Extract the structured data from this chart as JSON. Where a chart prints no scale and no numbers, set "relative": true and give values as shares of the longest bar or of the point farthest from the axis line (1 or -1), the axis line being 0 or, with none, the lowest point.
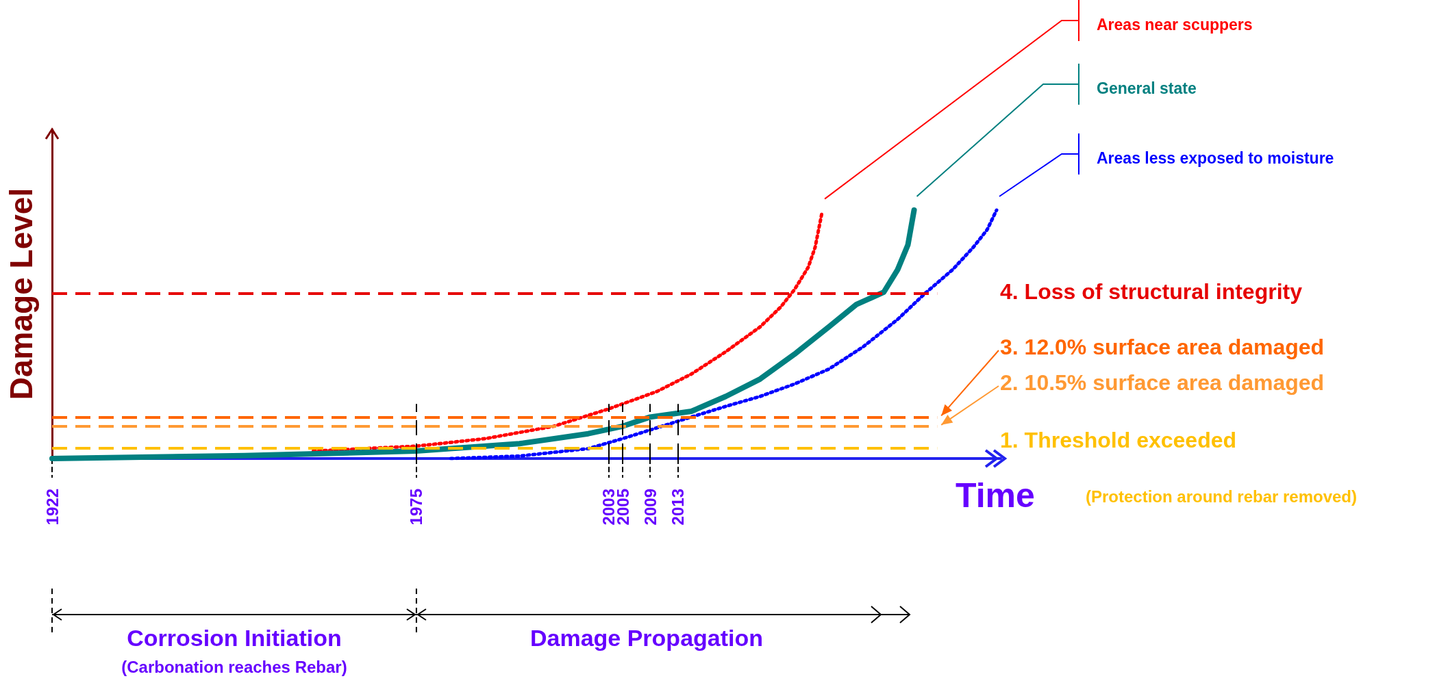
{
  "chart_data": {
    "type": "line",
    "relative": true,
    "xlabel": "Time",
    "ylabel": "Damage Level",
    "xlim": [
      1922,
      2060
    ],
    "xticks": [
      1922,
      1975,
      2003,
      2005,
      2009,
      2013
    ],
    "grid": false,
    "legend": false,
    "marker": "none",
    "tick_labels": "x",
    "series": [
      {
        "name": "Areas near scuppers",
        "color": "#ff0000",
        "line_style": "dotted",
        "x": [
          1960,
          1975,
          1985,
          1995,
          2003,
          2010,
          2015,
          2020,
          2025,
          2028,
          2030,
          2032,
          2033,
          2034
        ],
        "values": [
          0.03,
          0.05,
          0.08,
          0.13,
          0.2,
          0.27,
          0.34,
          0.43,
          0.53,
          0.61,
          0.68,
          0.77,
          0.85,
          0.99
        ]
      },
      {
        "name": "General state",
        "color": "#008080",
        "line_style": "solid",
        "x": [
          1922,
          1950,
          1975,
          1990,
          2000,
          2005,
          2009,
          2015,
          2020,
          2025,
          2030,
          2035,
          2039,
          2043,
          2045,
          2046.5,
          2047.4
        ],
        "values": [
          0,
          0.012,
          0.03,
          0.06,
          0.1,
          0.13,
          0.167,
          0.19,
          0.25,
          0.32,
          0.42,
          0.53,
          0.62,
          0.67,
          0.76,
          0.86,
          1
        ]
      },
      {
        "name": "Areas less exposed to moisture",
        "color": "#0000ff",
        "line_style": "dotted",
        "x": [
          1980,
          1990,
          2000,
          2005,
          2013,
          2020,
          2025,
          2030,
          2035,
          2040,
          2045,
          2049,
          2053,
          2056,
          2058,
          2059.4
        ],
        "values": [
          0,
          0.01,
          0.04,
          0.08,
          0.15,
          0.21,
          0.25,
          0.3,
          0.36,
          0.45,
          0.56,
          0.665,
          0.76,
          0.85,
          0.92,
          1
        ]
      }
    ],
    "ref_lines": [
      {
        "axis": "y",
        "value": 0.665,
        "label": "4. Loss of structural integrity",
        "color": "#e60000",
        "line_style": "dashed"
      },
      {
        "axis": "y",
        "value": 0.167,
        "label": "3. 12.0% surface area damaged",
        "color": "#ff6600",
        "line_style": "dashed"
      },
      {
        "axis": "y",
        "value": 0.13,
        "label": "2. 10.5% surface area damaged",
        "color": "#ff9933",
        "line_style": "dashed"
      },
      {
        "axis": "y",
        "value": 0.041,
        "label": "1.  Threshold exceeded",
        "color": "#ffc000",
        "line_style": "dashed"
      },
      {
        "axis": "x",
        "value": 1975,
        "color": "#000000",
        "line_style": "dashed"
      },
      {
        "axis": "x",
        "value": 2003,
        "color": "#000000",
        "line_style": "dashed"
      },
      {
        "axis": "x",
        "value": 2005,
        "color": "#000000",
        "line_style": "dashed"
      },
      {
        "axis": "x",
        "value": 2009,
        "color": "#000000",
        "line_style": "dashed"
      },
      {
        "axis": "x",
        "value": 2013,
        "color": "#000000",
        "line_style": "dashed"
      }
    ],
    "annotations": [
      "(Protection around rebar removed)",
      "Corrosion Initiation",
      "(Carbonation reaches Rebar)",
      "Damage Propagation"
    ]
  }
}
